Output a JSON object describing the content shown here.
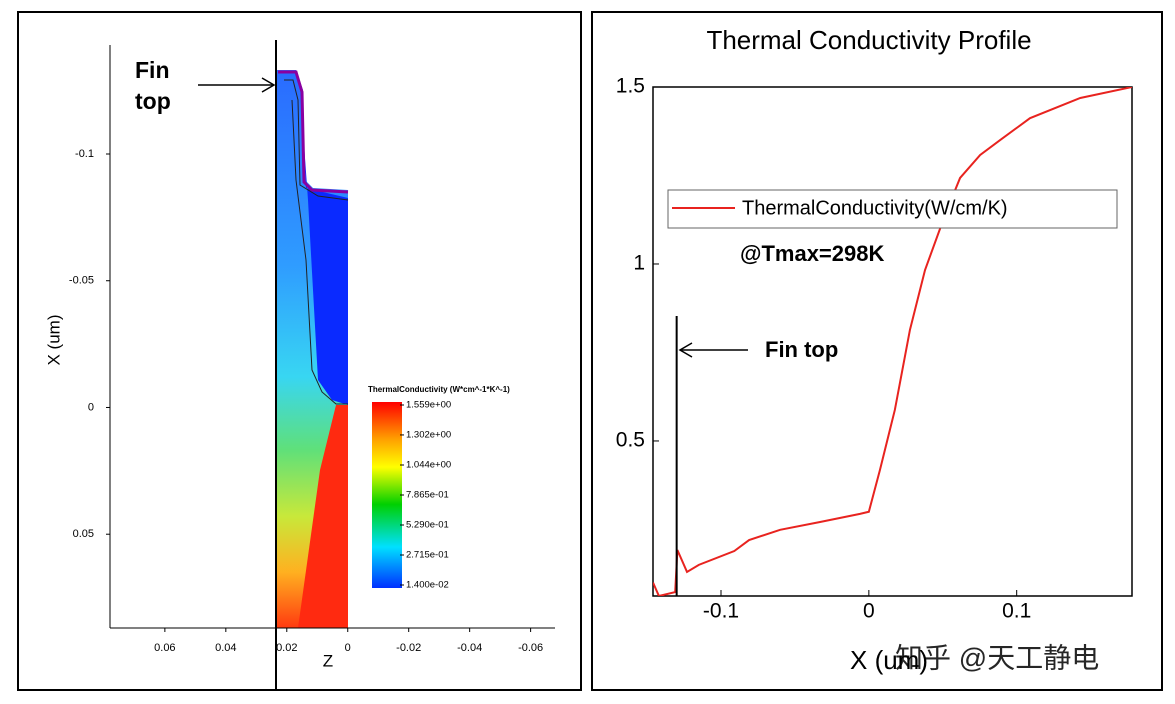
{
  "chart_data": [
    {
      "type": "contour",
      "xlabel": "Z",
      "ylabel": "X (um)",
      "xlim": [
        0.078,
        -0.068
      ],
      "xticks": [
        0.06,
        0.04,
        0.02,
        0,
        -0.02,
        -0.04,
        -0.06
      ],
      "ylim": [
        -0.143,
        0.087
      ],
      "yticks": [
        -0.1,
        -0.05,
        0,
        0.05
      ],
      "annotation_lines": [
        "Fin",
        "top"
      ],
      "colorbar": {
        "title": "ThermalConductivity (W*cm^-1*K^-1)",
        "clim": [
          0.014,
          1.559
        ],
        "ticks": [
          {
            "value": 1.559,
            "label": "1.559e+00"
          },
          {
            "value": 1.302,
            "label": "1.302e+00"
          },
          {
            "value": 1.044,
            "label": "1.044e+00"
          },
          {
            "value": 0.7865,
            "label": "7.865e-01"
          },
          {
            "value": 0.529,
            "label": "5.290e-01"
          },
          {
            "value": 0.2715,
            "label": "2.715e-01"
          },
          {
            "value": 0.014,
            "label": "1.400e-02"
          }
        ]
      }
    },
    {
      "type": "line",
      "title": "Thermal Conductivity Profile",
      "xlabel": "X (um)",
      "x": [
        -0.146,
        -0.142,
        -0.131,
        -0.1295,
        -0.123,
        -0.115,
        -0.091,
        -0.081,
        -0.06,
        -0.033,
        -0.006,
        0,
        0.0075,
        0.0176,
        0.0278,
        0.038,
        0.0515,
        0.0617,
        0.0753,
        0.0888,
        0.109,
        0.143,
        0.178
      ],
      "series": [
        {
          "name": "ThermalConductivity(W/cm/K)",
          "color": "#e8231f",
          "values": [
            0.1,
            0.062,
            0.073,
            0.192,
            0.13,
            0.15,
            0.189,
            0.22,
            0.249,
            0.271,
            0.294,
            0.3,
            0.418,
            0.588,
            0.814,
            0.983,
            1.138,
            1.243,
            1.308,
            1.35,
            1.412,
            1.469,
            1.5
          ]
        }
      ],
      "xlim": [
        -0.146,
        0.178
      ],
      "xticks": [
        -0.1,
        0,
        0.1
      ],
      "ylim": [
        0.062,
        1.5
      ],
      "yticks": [
        0.5,
        1,
        1.5
      ],
      "legend": "upper left",
      "annotations": [
        "@Tmax=298K",
        "Fin top"
      ],
      "vline": {
        "x": -0.13,
        "y_top": 0.853
      },
      "watermark": "知乎 @天工静电"
    }
  ]
}
